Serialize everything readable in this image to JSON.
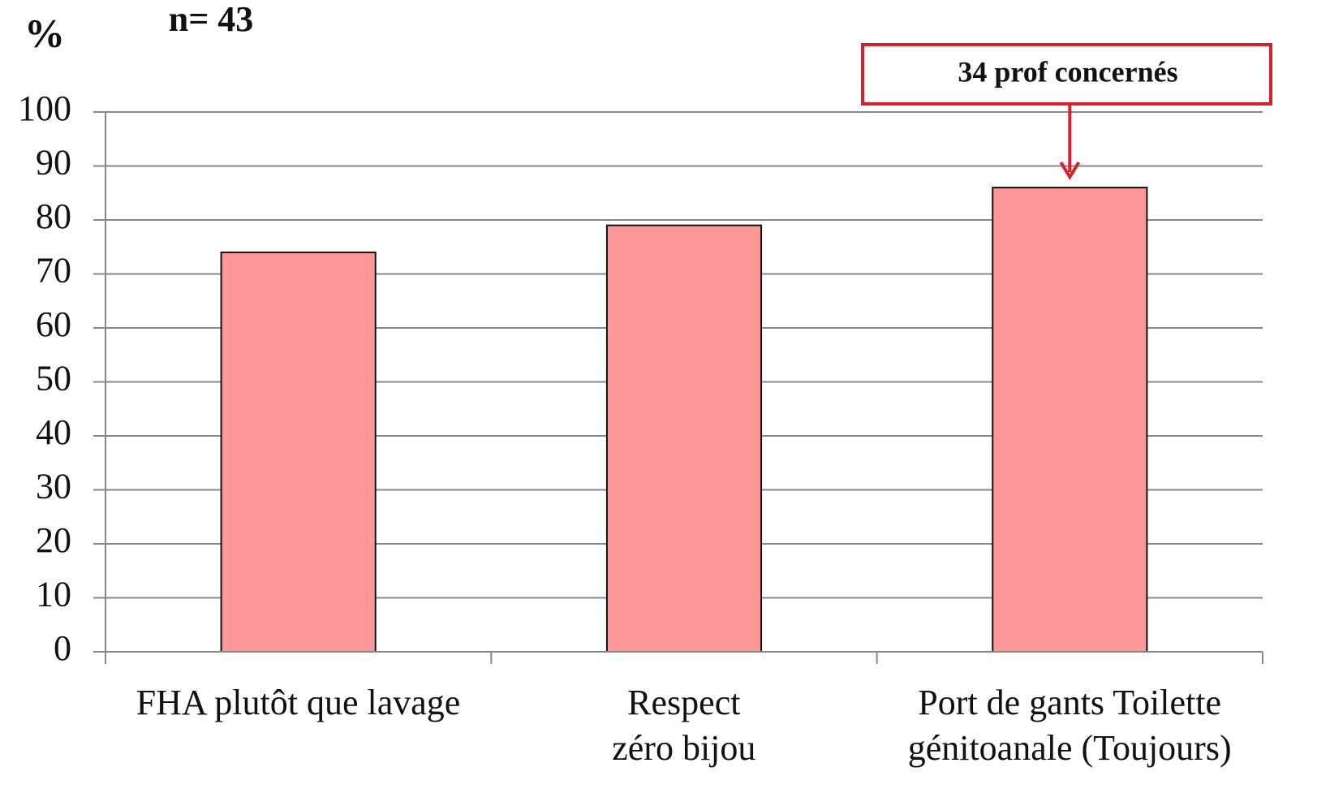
{
  "chart_data": {
    "type": "bar",
    "y_axis_label": "%",
    "subtitle": "n= 43",
    "annotation": "34 prof concernés",
    "categories": [
      "FHA plutôt que lavage",
      "Respect\nzéro bijou",
      "Port de gants Toilette\ngénitoanale (Toujours)"
    ],
    "values": [
      74,
      79,
      86
    ],
    "color": "#ff9999",
    "ylim": [
      0,
      100
    ],
    "yticks": [
      0,
      10,
      20,
      30,
      40,
      50,
      60,
      70,
      80,
      90,
      100
    ],
    "grid": true
  }
}
